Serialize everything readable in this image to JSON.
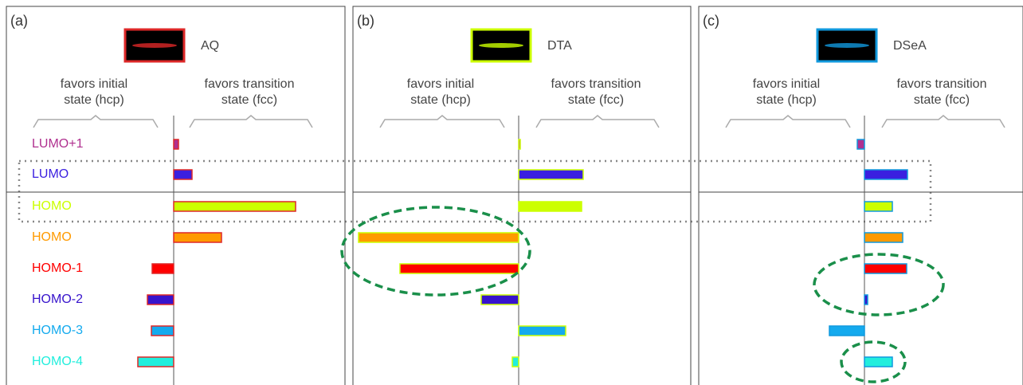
{
  "chart_data": [
    {
      "type": "bar",
      "orientation": "horizontal",
      "panel_label": "(a)",
      "molecule": "AQ",
      "left_label": [
        "favors initial",
        "state (hcp)"
      ],
      "right_label": [
        "favors transition",
        "state (fcc)"
      ],
      "categories": [
        "LUMO+1",
        "LUMO",
        "HOMO",
        "HOMO",
        "HOMO-1",
        "HOMO-2",
        "HOMO-3",
        "HOMO-4"
      ],
      "colors": [
        "#b0308f",
        "#3a1fe0",
        "#ccff00",
        "#ff9a00",
        "#ff0000",
        "#3714cc",
        "#14aaee",
        "#22eedd"
      ],
      "edge_color": "#dd2828",
      "xlim": [
        -210,
        215
      ],
      "values": [
        6,
        23,
        153,
        60,
        -27,
        -33,
        -28,
        -45
      ]
    },
    {
      "type": "bar",
      "orientation": "horizontal",
      "panel_label": "(b)",
      "molecule": "DTA",
      "left_label": [
        "favors initial",
        "state (hcp)"
      ],
      "right_label": [
        "favors transition",
        "state (fcc)"
      ],
      "edge_color": "#ccff00",
      "xlim": [
        -208,
        216
      ],
      "values": [
        2,
        81,
        79,
        -201,
        -149,
        -47,
        59,
        -8
      ]
    },
    {
      "type": "bar",
      "orientation": "horizontal",
      "panel_label": "(c)",
      "molecule": "DSeA",
      "left_label": [
        "favors initial",
        "state (hcp)"
      ],
      "right_label": [
        "favors transition",
        "state (fcc)"
      ],
      "edge_color": "#1199dd",
      "xlim": [
        -208,
        199
      ],
      "values": [
        -9,
        54,
        35,
        48,
        53,
        4,
        -44,
        35
      ]
    }
  ]
}
